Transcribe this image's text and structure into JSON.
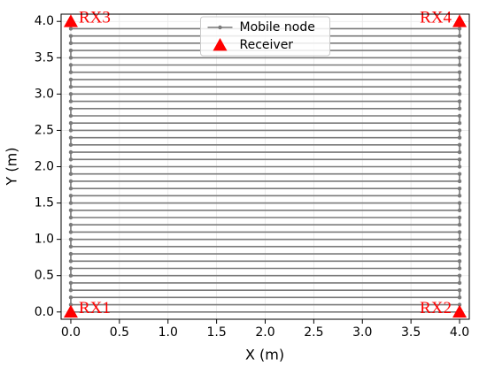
{
  "chart_data": {
    "type": "line",
    "xlabel": "X (m)",
    "ylabel": "Y (m)",
    "xlim": [
      -0.1,
      4.1
    ],
    "ylim": [
      -0.1,
      4.1
    ],
    "xticks": [
      {
        "value": 0,
        "label": "0.0"
      },
      0.5,
      {
        "value": 1,
        "label": "1.0"
      },
      1.5,
      {
        "value": 2,
        "label": "2.0"
      },
      2.5,
      {
        "value": 3,
        "label": "3.0"
      },
      3.5,
      {
        "value": 4,
        "label": "4.0"
      }
    ],
    "yticks": [
      {
        "value": 0,
        "label": "0.0"
      },
      0.5,
      {
        "value": 1,
        "label": "1.0"
      },
      1.5,
      {
        "value": 2,
        "label": "2.0"
      },
      2.5,
      {
        "value": 3,
        "label": "3.0"
      },
      3.5,
      {
        "value": 4,
        "label": "4.0"
      }
    ],
    "grid": true,
    "legend": "upper center",
    "series": [
      {
        "name": "Mobile node",
        "color": "#7a7a7a",
        "marker": "circle",
        "x": [
          0,
          4,
          4,
          0,
          0,
          4,
          4,
          0,
          0,
          4,
          4,
          0,
          0,
          4,
          4,
          0,
          0,
          4,
          4,
          0,
          0,
          4,
          4,
          0,
          0,
          4,
          4,
          0,
          0,
          4,
          4,
          0,
          0,
          4,
          4,
          0,
          0,
          4,
          4,
          0,
          0,
          4,
          4,
          0,
          0,
          4,
          4,
          0,
          0,
          4,
          4,
          0,
          0,
          4,
          4,
          0,
          0,
          4,
          4,
          0,
          0,
          4,
          4,
          0,
          0,
          4,
          4,
          0,
          0,
          4,
          4,
          0,
          0,
          4,
          4,
          0,
          0,
          4,
          4,
          0
        ],
        "values": [
          0,
          0,
          0.1,
          0.1,
          0.2,
          0.2,
          0.3,
          0.3,
          0.4,
          0.4,
          0.5,
          0.5,
          0.6,
          0.6,
          0.7,
          0.7,
          0.8,
          0.8,
          0.9,
          0.9,
          1.0,
          1.0,
          1.1,
          1.1,
          1.2,
          1.2,
          1.3,
          1.3,
          1.4,
          1.4,
          1.5,
          1.5,
          1.6,
          1.6,
          1.7,
          1.7,
          1.8,
          1.8,
          1.9,
          1.9,
          2.0,
          2.0,
          2.1,
          2.1,
          2.2,
          2.2,
          2.3,
          2.3,
          2.4,
          2.4,
          2.5,
          2.5,
          2.6,
          2.6,
          2.7,
          2.7,
          2.8,
          2.8,
          2.9,
          2.9,
          3.0,
          3.0,
          3.1,
          3.1,
          3.2,
          3.2,
          3.3,
          3.3,
          3.4,
          3.4,
          3.5,
          3.5,
          3.6,
          3.6,
          3.7,
          3.7,
          3.8,
          3.8,
          3.9,
          3.9
        ]
      },
      {
        "name": "Receiver",
        "color": "#ff0000",
        "marker": "triangle",
        "x": [
          0,
          4,
          0,
          4
        ],
        "values": [
          0,
          0,
          4,
          4
        ],
        "point_labels": [
          "RX1",
          "RX2",
          "RX3",
          "RX4"
        ]
      }
    ]
  }
}
